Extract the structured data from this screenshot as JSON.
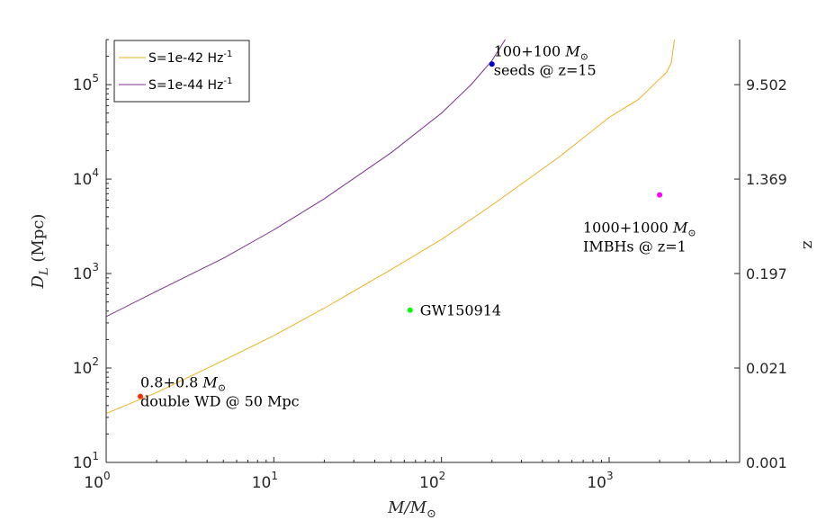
{
  "chart_data": {
    "type": "line",
    "title": "",
    "xlabel": {
      "base": "M/M",
      "sub": "⊙"
    },
    "ylabel": {
      "base": "D",
      "sub": "L",
      "unit": " (Mpc)"
    },
    "ylabel_right": "z",
    "xscale": "log",
    "yscale": "log",
    "xlim": [
      1,
      6000
    ],
    "ylim": [
      10,
      300000
    ],
    "x_ticks": [
      {
        "value": 1,
        "mant": "10",
        "exp": "0"
      },
      {
        "value": 10,
        "mant": "10",
        "exp": "1"
      },
      {
        "value": 100,
        "mant": "10",
        "exp": "2"
      },
      {
        "value": 1000,
        "mant": "10",
        "exp": "3"
      }
    ],
    "y_ticks": [
      {
        "value": 10,
        "mant": "10",
        "exp": "1"
      },
      {
        "value": 100,
        "mant": "10",
        "exp": "2"
      },
      {
        "value": 1000,
        "mant": "10",
        "exp": "3"
      },
      {
        "value": 10000,
        "mant": "10",
        "exp": "4"
      },
      {
        "value": 100000,
        "mant": "10",
        "exp": "5"
      }
    ],
    "right_ticks": [
      {
        "dl": 10,
        "label": "0.001"
      },
      {
        "dl": 100,
        "label": "0.021"
      },
      {
        "dl": 1000,
        "label": "0.197"
      },
      {
        "dl": 10000,
        "label": "1.369"
      },
      {
        "dl": 100000,
        "label": "9.502"
      }
    ],
    "series": [
      {
        "name": "S=1e-42 Hz",
        "name_sup": "-1",
        "color": "#EDB120",
        "x": [
          1,
          2,
          5,
          10,
          20,
          50,
          100,
          200,
          500,
          1000,
          1500,
          2000,
          2200,
          2350,
          2450
        ],
        "y": [
          33,
          55,
          120,
          220,
          430,
          1100,
          2300,
          5300,
          17000,
          45000,
          70000,
          115000,
          135000,
          170000,
          300000
        ]
      },
      {
        "name": "S=1e-44 Hz",
        "name_sup": "-1",
        "color": "#7E2F8E",
        "x": [
          1,
          2,
          5,
          10,
          20,
          50,
          100,
          150,
          200,
          240
        ],
        "y": [
          350,
          650,
          1450,
          2900,
          6200,
          19000,
          50000,
          100000,
          180000,
          300000
        ]
      }
    ],
    "points": [
      {
        "x": 1.6,
        "y": 50,
        "color": "#FF2A00",
        "line1": "0.8+0.8 ",
        "unit1": "M",
        "unit1_sub": "⊙",
        "line2": "double WD @ 50 Mpc"
      },
      {
        "x": 65,
        "y": 410,
        "color": "#00FF00",
        "line1": "GW150914",
        "unit1": "",
        "unit1_sub": "",
        "line2": ""
      },
      {
        "x": 200,
        "y": 165000,
        "color": "#0000CC",
        "line1": "100+100 ",
        "unit1": "M",
        "unit1_sub": "⊙",
        "line2": "seeds @ z=15"
      },
      {
        "x": 2000,
        "y": 6800,
        "color": "#FF00FF",
        "line1": "1000+1000 ",
        "unit1": "M",
        "unit1_sub": "⊙",
        "line2": "IMBHs @ z=1"
      }
    ],
    "legend": {
      "position": "top-left"
    }
  }
}
